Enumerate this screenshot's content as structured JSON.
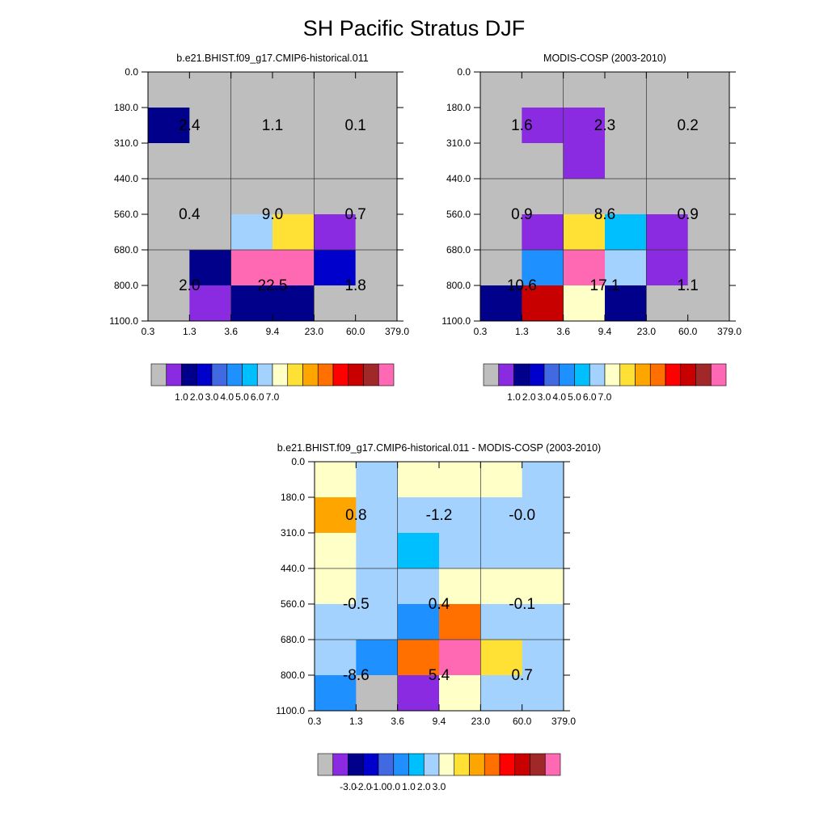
{
  "title": "SH Pacific Stratus DJF",
  "chart_data": [
    {
      "type": "heatmap",
      "title": "b.e21.BHIST.f09_g17.CMIP6-historical.011",
      "x_ticks": [
        "0.3",
        "1.3",
        "3.6",
        "9.4",
        "23.0",
        "60.0",
        "379.0"
      ],
      "y_ticks": [
        "0.0",
        "180.0",
        "310.0",
        "440.0",
        "560.0",
        "680.0",
        "800.0",
        "1100.0"
      ],
      "cell_colors": [
        [
          "#BEBEBE",
          "#BEBEBE",
          "#BEBEBE",
          "#BEBEBE",
          "#BEBEBE",
          "#BEBEBE"
        ],
        [
          "#00008B",
          "#BEBEBE",
          "#BEBEBE",
          "#BEBEBE",
          "#BEBEBE",
          "#BEBEBE"
        ],
        [
          "#BEBEBE",
          "#BEBEBE",
          "#BEBEBE",
          "#BEBEBE",
          "#BEBEBE",
          "#BEBEBE"
        ],
        [
          "#BEBEBE",
          "#BEBEBE",
          "#BEBEBE",
          "#BEBEBE",
          "#BEBEBE",
          "#BEBEBE"
        ],
        [
          "#BEBEBE",
          "#BEBEBE",
          "#A3D2FF",
          "#FFE135",
          "#8A2BE2",
          "#BEBEBE"
        ],
        [
          "#BEBEBE",
          "#00008B",
          "#FF69B4",
          "#FF69B4",
          "#0000CD",
          "#BEBEBE"
        ],
        [
          "#BEBEBE",
          "#8A2BE2",
          "#00008B",
          "#00008B",
          "#BEBEBE",
          "#BEBEBE"
        ]
      ],
      "block_labels": [
        [
          "2.4",
          "1.1",
          "0.1"
        ],
        [
          "0.4",
          "9.0",
          "0.7"
        ],
        [
          "2.0",
          "22.5",
          "1.8"
        ]
      ],
      "colorbar": {
        "colors": [
          "#BEBEBE",
          "#8A2BE2",
          "#00008B",
          "#0000CD",
          "#4169E1",
          "#1E90FF",
          "#00BFFF",
          "#A3D2FF",
          "#FFFFC8",
          "#FFE135",
          "#FFA500",
          "#FF7000",
          "#FF0000",
          "#C80000",
          "#A02828",
          "#FF69B4"
        ],
        "labels": [
          "1.0",
          "2.0",
          "3.0",
          "4.0",
          "5.0",
          "6.0",
          "7.0"
        ],
        "label_boundaries": [
          2,
          3,
          4,
          5,
          6,
          7,
          8
        ]
      }
    },
    {
      "type": "heatmap",
      "title": "MODIS-COSP (2003-2010)",
      "x_ticks": [
        "0.3",
        "1.3",
        "3.6",
        "9.4",
        "23.0",
        "60.0",
        "379.0"
      ],
      "y_ticks": [
        "0.0",
        "180.0",
        "310.0",
        "440.0",
        "560.0",
        "680.0",
        "800.0",
        "1100.0"
      ],
      "cell_colors": [
        [
          "#BEBEBE",
          "#BEBEBE",
          "#BEBEBE",
          "#BEBEBE",
          "#BEBEBE",
          "#BEBEBE"
        ],
        [
          "#BEBEBE",
          "#8A2BE2",
          "#8A2BE2",
          "#BEBEBE",
          "#BEBEBE",
          "#BEBEBE"
        ],
        [
          "#BEBEBE",
          "#BEBEBE",
          "#8A2BE2",
          "#BEBEBE",
          "#BEBEBE",
          "#BEBEBE"
        ],
        [
          "#BEBEBE",
          "#BEBEBE",
          "#BEBEBE",
          "#BEBEBE",
          "#BEBEBE",
          "#BEBEBE"
        ],
        [
          "#BEBEBE",
          "#8A2BE2",
          "#FFE135",
          "#00BFFF",
          "#8A2BE2",
          "#BEBEBE"
        ],
        [
          "#BEBEBE",
          "#1E90FF",
          "#FF69B4",
          "#A3D2FF",
          "#8A2BE2",
          "#BEBEBE"
        ],
        [
          "#00008B",
          "#C80000",
          "#FFFFC8",
          "#00008B",
          "#BEBEBE",
          "#BEBEBE"
        ]
      ],
      "block_labels": [
        [
          "1.6",
          "2.3",
          "0.2"
        ],
        [
          "0.9",
          "8.6",
          "0.9"
        ],
        [
          "10.6",
          "17.1",
          "1.1"
        ]
      ],
      "colorbar": {
        "colors": [
          "#BEBEBE",
          "#8A2BE2",
          "#00008B",
          "#0000CD",
          "#4169E1",
          "#1E90FF",
          "#00BFFF",
          "#A3D2FF",
          "#FFFFC8",
          "#FFE135",
          "#FFA500",
          "#FF7000",
          "#FF0000",
          "#C80000",
          "#A02828",
          "#FF69B4"
        ],
        "labels": [
          "1.0",
          "2.0",
          "3.0",
          "4.0",
          "5.0",
          "6.0",
          "7.0"
        ],
        "label_boundaries": [
          2,
          3,
          4,
          5,
          6,
          7,
          8
        ]
      }
    },
    {
      "type": "heatmap",
      "title": "b.e21.BHIST.f09_g17.CMIP6-historical.011 - MODIS-COSP (2003-2010)",
      "x_ticks": [
        "0.3",
        "1.3",
        "3.6",
        "9.4",
        "23.0",
        "60.0",
        "379.0"
      ],
      "y_ticks": [
        "0.0",
        "180.0",
        "310.0",
        "440.0",
        "560.0",
        "680.0",
        "800.0",
        "1100.0"
      ],
      "cell_colors": [
        [
          "#FFFFC8",
          "#A3D2FF",
          "#FFFFC8",
          "#FFFFC8",
          "#FFFFC8",
          "#A3D2FF"
        ],
        [
          "#FFA500",
          "#A3D2FF",
          "#A3D2FF",
          "#A3D2FF",
          "#A3D2FF",
          "#A3D2FF"
        ],
        [
          "#FFFFC8",
          "#A3D2FF",
          "#00BFFF",
          "#A3D2FF",
          "#A3D2FF",
          "#A3D2FF"
        ],
        [
          "#FFFFC8",
          "#A3D2FF",
          "#A3D2FF",
          "#FFFFC8",
          "#FFFFC8",
          "#FFFFC8"
        ],
        [
          "#A3D2FF",
          "#A3D2FF",
          "#1E90FF",
          "#FF7000",
          "#A3D2FF",
          "#A3D2FF"
        ],
        [
          "#A3D2FF",
          "#1E90FF",
          "#FF7000",
          "#FF69B4",
          "#FFE135",
          "#A3D2FF"
        ],
        [
          "#1E90FF",
          "#BEBEBE",
          "#8A2BE2",
          "#FFFFC8",
          "#A3D2FF",
          "#A3D2FF"
        ]
      ],
      "block_labels": [
        [
          "0.8",
          "-1.2",
          "-0.0"
        ],
        [
          "-0.5",
          "0.4",
          "-0.1"
        ],
        [
          "-8.6",
          "5.4",
          "0.7"
        ]
      ],
      "colorbar": {
        "colors": [
          "#BEBEBE",
          "#8A2BE2",
          "#00008B",
          "#0000CD",
          "#4169E1",
          "#1E90FF",
          "#00BFFF",
          "#A3D2FF",
          "#FFFFC8",
          "#FFE135",
          "#FFA500",
          "#FF7000",
          "#FF0000",
          "#C80000",
          "#A02828",
          "#FF69B4"
        ],
        "labels": [
          "-3.0",
          "-2.0",
          "-1.0",
          "0.0",
          "1.0",
          "2.0",
          "3.0"
        ],
        "label_boundaries": [
          2,
          3,
          4,
          5,
          6,
          7,
          8
        ]
      }
    }
  ]
}
